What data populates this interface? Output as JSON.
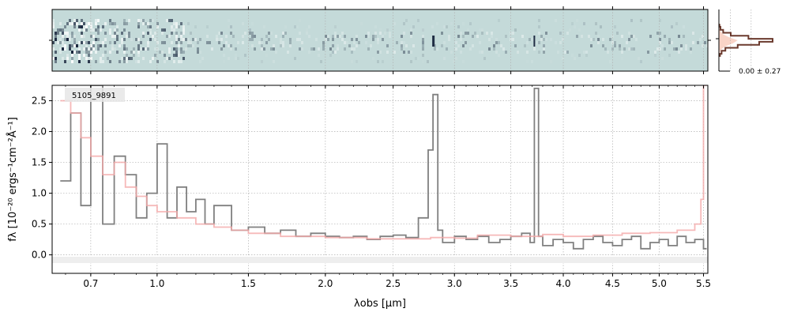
{
  "colors": {
    "flux": "#808080",
    "model": "#f4a8a8",
    "zero_band": "#eeeeee",
    "spectrum_2d_bg": "#c4dad9",
    "spectrum_2d_dark": "#0e1a33",
    "profile_line": "#6b3a2e",
    "profile_fill": "#f7c9b9",
    "grid": "#b0b0b0"
  },
  "chart_data": [
    {
      "type": "image",
      "name": "2D spectrum",
      "x_axis": "shared with 1D spectrum",
      "yticks": [
        0
      ]
    },
    {
      "type": "line",
      "name": "cross-dispersion profile",
      "annotation": "0.00 ± 0.27",
      "profile_y": [
        -5,
        -4,
        -3,
        -2,
        -1,
        0,
        1,
        2,
        3,
        4,
        5
      ],
      "profile_values": [
        0.02,
        0.05,
        0.12,
        0.35,
        0.75,
        1.0,
        0.55,
        0.22,
        0.08,
        0.03,
        0.01
      ]
    },
    {
      "type": "line",
      "title": "",
      "label": "5105_9891",
      "xlabel": "λobs [μm]",
      "ylabel": "fλ [10⁻²⁰ ergs⁻¹cm⁻²Å⁻¹]",
      "xlim": [
        0.55,
        5.55
      ],
      "ylim": [
        -0.3,
        2.75
      ],
      "xscale": "sqrt",
      "xticks": [
        0.7,
        1.0,
        1.5,
        2.0,
        2.5,
        3.0,
        3.5,
        4.0,
        4.5,
        5.0,
        5.5
      ],
      "xtick_labels": [
        "0.7",
        "1.0",
        "1.5",
        "2.0",
        "2.5",
        "3.0",
        "3.5",
        "4.0",
        "4.5",
        "5.0",
        "5.5"
      ],
      "yticks": [
        0.0,
        0.5,
        1.0,
        1.5,
        2.0,
        2.5
      ],
      "ytick_labels": [
        "0.0",
        "0.5",
        "1.0",
        "1.5",
        "2.0",
        "2.5"
      ],
      "grid": true,
      "series": [
        {
          "key": "flux",
          "style": "steps",
          "x": [
            0.58,
            0.62,
            0.66,
            0.7,
            0.75,
            0.8,
            0.85,
            0.9,
            0.95,
            1.0,
            1.05,
            1.1,
            1.15,
            1.2,
            1.25,
            1.3,
            1.4,
            1.5,
            1.6,
            1.7,
            1.8,
            1.9,
            2.0,
            2.1,
            2.2,
            2.3,
            2.4,
            2.5,
            2.6,
            2.7,
            2.78,
            2.82,
            2.86,
            2.9,
            3.0,
            3.1,
            3.2,
            3.3,
            3.4,
            3.5,
            3.6,
            3.68,
            3.72,
            3.76,
            3.8,
            3.9,
            4.0,
            4.1,
            4.2,
            4.3,
            4.4,
            4.5,
            4.6,
            4.7,
            4.8,
            4.9,
            5.0,
            5.1,
            5.2,
            5.3,
            5.4,
            5.5
          ],
          "y": [
            1.2,
            2.3,
            0.8,
            2.75,
            0.5,
            1.6,
            1.3,
            0.6,
            1.0,
            1.8,
            0.6,
            1.1,
            0.7,
            0.9,
            0.5,
            0.8,
            0.4,
            0.45,
            0.35,
            0.4,
            0.3,
            0.35,
            0.3,
            0.28,
            0.3,
            0.25,
            0.3,
            0.32,
            0.28,
            0.6,
            1.7,
            2.6,
            0.4,
            0.2,
            0.3,
            0.25,
            0.3,
            0.2,
            0.25,
            0.3,
            0.35,
            0.2,
            2.7,
            0.3,
            0.15,
            0.25,
            0.2,
            0.1,
            0.25,
            0.3,
            0.2,
            0.15,
            0.25,
            0.3,
            0.1,
            0.2,
            0.25,
            0.15,
            0.3,
            0.2,
            0.25,
            0.1
          ]
        },
        {
          "key": "model",
          "style": "steps",
          "x": [
            0.58,
            0.62,
            0.66,
            0.7,
            0.75,
            0.8,
            0.85,
            0.9,
            0.95,
            1.0,
            1.1,
            1.2,
            1.3,
            1.4,
            1.5,
            1.7,
            2.0,
            2.3,
            2.6,
            2.8,
            3.0,
            3.2,
            3.5,
            3.8,
            4.0,
            4.3,
            4.6,
            4.9,
            5.2,
            5.4,
            5.47,
            5.5
          ],
          "y": [
            2.5,
            2.3,
            1.9,
            1.6,
            1.3,
            1.5,
            1.1,
            0.95,
            0.8,
            0.7,
            0.6,
            0.5,
            0.45,
            0.4,
            0.35,
            0.3,
            0.28,
            0.26,
            0.26,
            0.28,
            0.27,
            0.32,
            0.3,
            0.33,
            0.3,
            0.32,
            0.35,
            0.36,
            0.4,
            0.5,
            0.9,
            2.75
          ]
        }
      ]
    }
  ]
}
